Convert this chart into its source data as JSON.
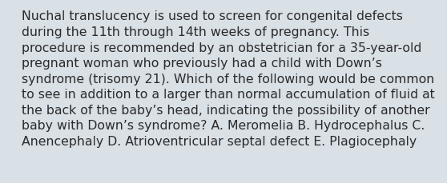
{
  "lines": [
    "Nuchal translucency is used to screen for congenital defects",
    "during the 11th through 14th weeks of pregnancy. This",
    "procedure is recommended by an obstetrician for a 35-year-old",
    "pregnant woman who previously had a child with Down’s",
    "syndrome (trisomy 21). Which of the following would be common",
    "to see in addition to a larger than normal accumulation of fluid at",
    "the back of the baby’s head, indicating the possibility of another",
    "baby with Down’s syndrome? A. Meromelia B. Hydrocephalus C.",
    "Anencephaly D. Atrioventricular septal defect E. Plagiocephaly"
  ],
  "background_color": "#d9e0e6",
  "text_color": "#2b2b2b",
  "font_size": 11.3,
  "fig_width": 5.58,
  "fig_height": 2.3,
  "dpi": 100
}
